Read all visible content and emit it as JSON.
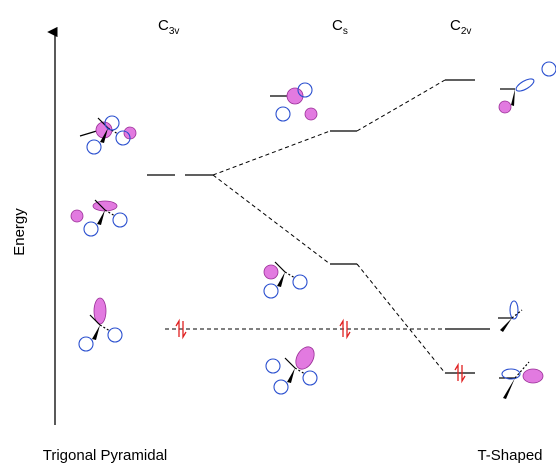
{
  "columns": [
    {
      "symbol": "C",
      "subscript": "3v"
    },
    {
      "symbol": "C",
      "subscript": "s"
    },
    {
      "symbol": "C",
      "subscript": "2v"
    }
  ],
  "axis_label": "Energy",
  "geometries": [
    "Trigonal Pyramidal",
    "T-Shaped"
  ]
}
